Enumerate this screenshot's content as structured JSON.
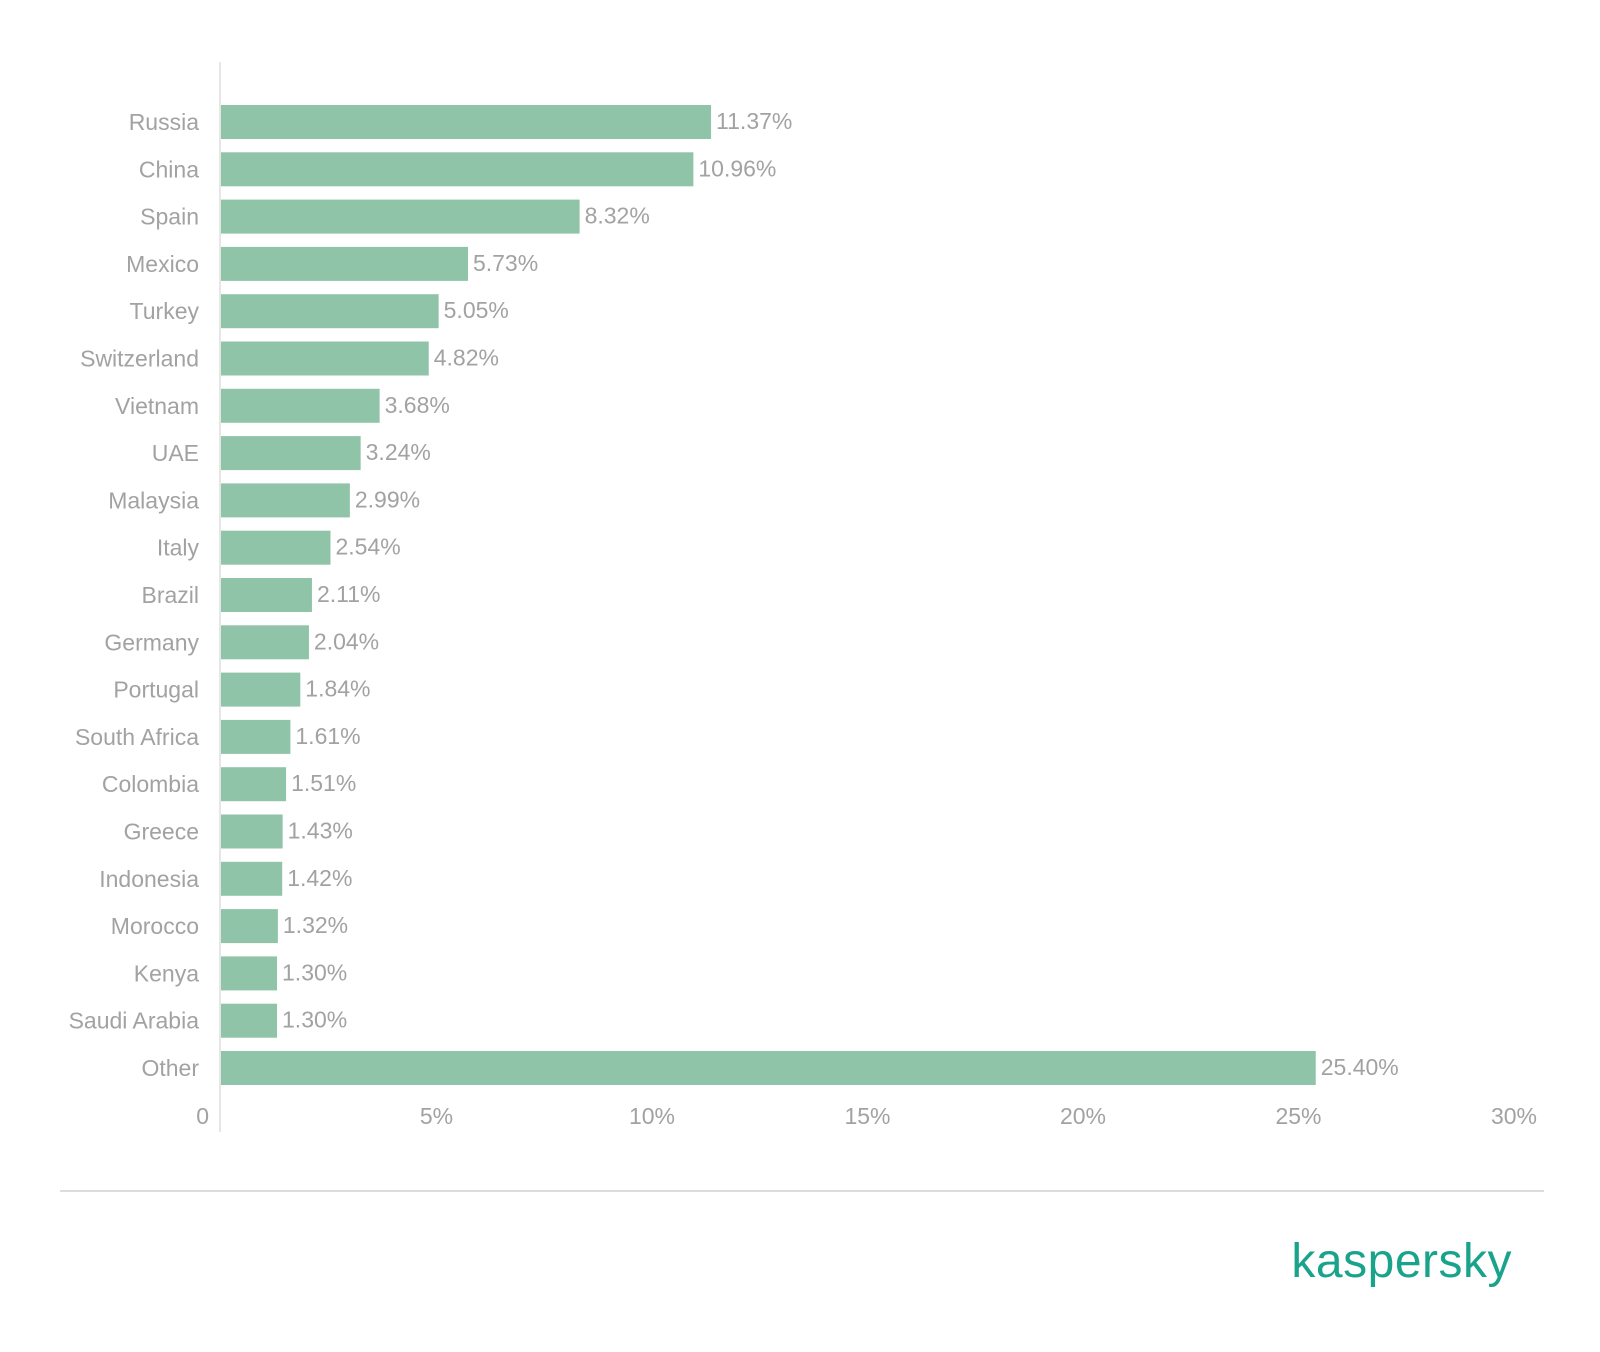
{
  "chart_data": {
    "type": "bar",
    "orientation": "horizontal",
    "categories": [
      "Russia",
      "China",
      "Spain",
      "Mexico",
      "Turkey",
      "Switzerland",
      "Vietnam",
      "UAE",
      "Malaysia",
      "Italy",
      "Brazil",
      "Germany",
      "Portugal",
      "South Africa",
      "Colombia",
      "Greece",
      "Indonesia",
      "Morocco",
      "Kenya",
      "Saudi Arabia",
      "Other"
    ],
    "values": [
      11.37,
      10.96,
      8.32,
      5.73,
      5.05,
      4.82,
      3.68,
      3.24,
      2.99,
      2.54,
      2.11,
      2.04,
      1.84,
      1.61,
      1.51,
      1.43,
      1.42,
      1.32,
      1.3,
      1.3,
      25.4
    ],
    "data_labels": [
      "11.37%",
      "10.96%",
      "8.32%",
      "5.73%",
      "5.05%",
      "4.82%",
      "3.68%",
      "3.24%",
      "2.99%",
      "2.54%",
      "2.11%",
      "2.04%",
      "1.84%",
      "1.61%",
      "1.51%",
      "1.43%",
      "1.42%",
      "1.32%",
      "1.30%",
      "1.30%",
      "25.40%"
    ],
    "xlim": [
      0,
      30
    ],
    "x_ticks": [
      0,
      5,
      10,
      15,
      20,
      25,
      30
    ],
    "x_tick_labels": [
      "0",
      "5%",
      "10%",
      "15%",
      "20%",
      "25%",
      "30%"
    ],
    "grid": false,
    "legend": "none",
    "title": "",
    "xlabel": "",
    "ylabel": ""
  },
  "colors": {
    "bar": "#8fc4a8",
    "text": "#a2a2a2",
    "axis": "#e6e6e6",
    "brand": "#1aa38b"
  },
  "branding": {
    "logo_text": "kaspersky"
  }
}
